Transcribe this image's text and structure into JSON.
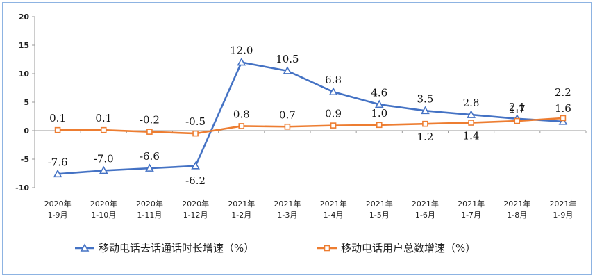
{
  "chart_data": {
    "type": "line",
    "title": "",
    "xlabel": "",
    "ylabel": "",
    "ylim": [
      -10,
      20
    ],
    "yticks": [
      -10,
      -5,
      0,
      5,
      10,
      15,
      20
    ],
    "grid": false,
    "legend_position": "bottom",
    "categories": [
      [
        "2020年",
        "1-9月"
      ],
      [
        "2020年",
        "1-10月"
      ],
      [
        "2020年",
        "1-11月"
      ],
      [
        "2020年",
        "1-12月"
      ],
      [
        "2021年",
        "1-2月"
      ],
      [
        "2021年",
        "1-3月"
      ],
      [
        "2021年",
        "1-4月"
      ],
      [
        "2021年",
        "1-5月"
      ],
      [
        "2021年",
        "1-6月"
      ],
      [
        "2021年",
        "1-7月"
      ],
      [
        "2021年",
        "1-8月"
      ],
      [
        "2021年",
        "1-9月"
      ]
    ],
    "series": [
      {
        "name": "移动电话去话通话时长增速（%）",
        "color": "#4472c4",
        "marker": "triangle",
        "values": [
          -7.6,
          -7.0,
          -6.6,
          -6.2,
          12.0,
          10.5,
          6.8,
          4.6,
          3.5,
          2.8,
          2.1,
          1.6
        ],
        "labels": [
          "-7.6",
          "-7.0",
          "-6.6",
          "-6.2",
          "12.0",
          "10.5",
          "6.8",
          "4.6",
          "3.5",
          "2.8",
          "2.1",
          "1.6"
        ]
      },
      {
        "name": "移动电话用户总数增速（%）",
        "color": "#ed7d31",
        "marker": "square",
        "values": [
          0.1,
          0.1,
          -0.2,
          -0.5,
          0.8,
          0.7,
          0.9,
          1.0,
          1.2,
          1.4,
          1.7,
          2.2
        ],
        "labels": [
          "0.1",
          "0.1",
          "-0.2",
          "-0.5",
          "0.8",
          "0.7",
          "0.9",
          "1.0",
          "1.2",
          "1.4",
          "1.7",
          "2.2"
        ]
      }
    ]
  }
}
